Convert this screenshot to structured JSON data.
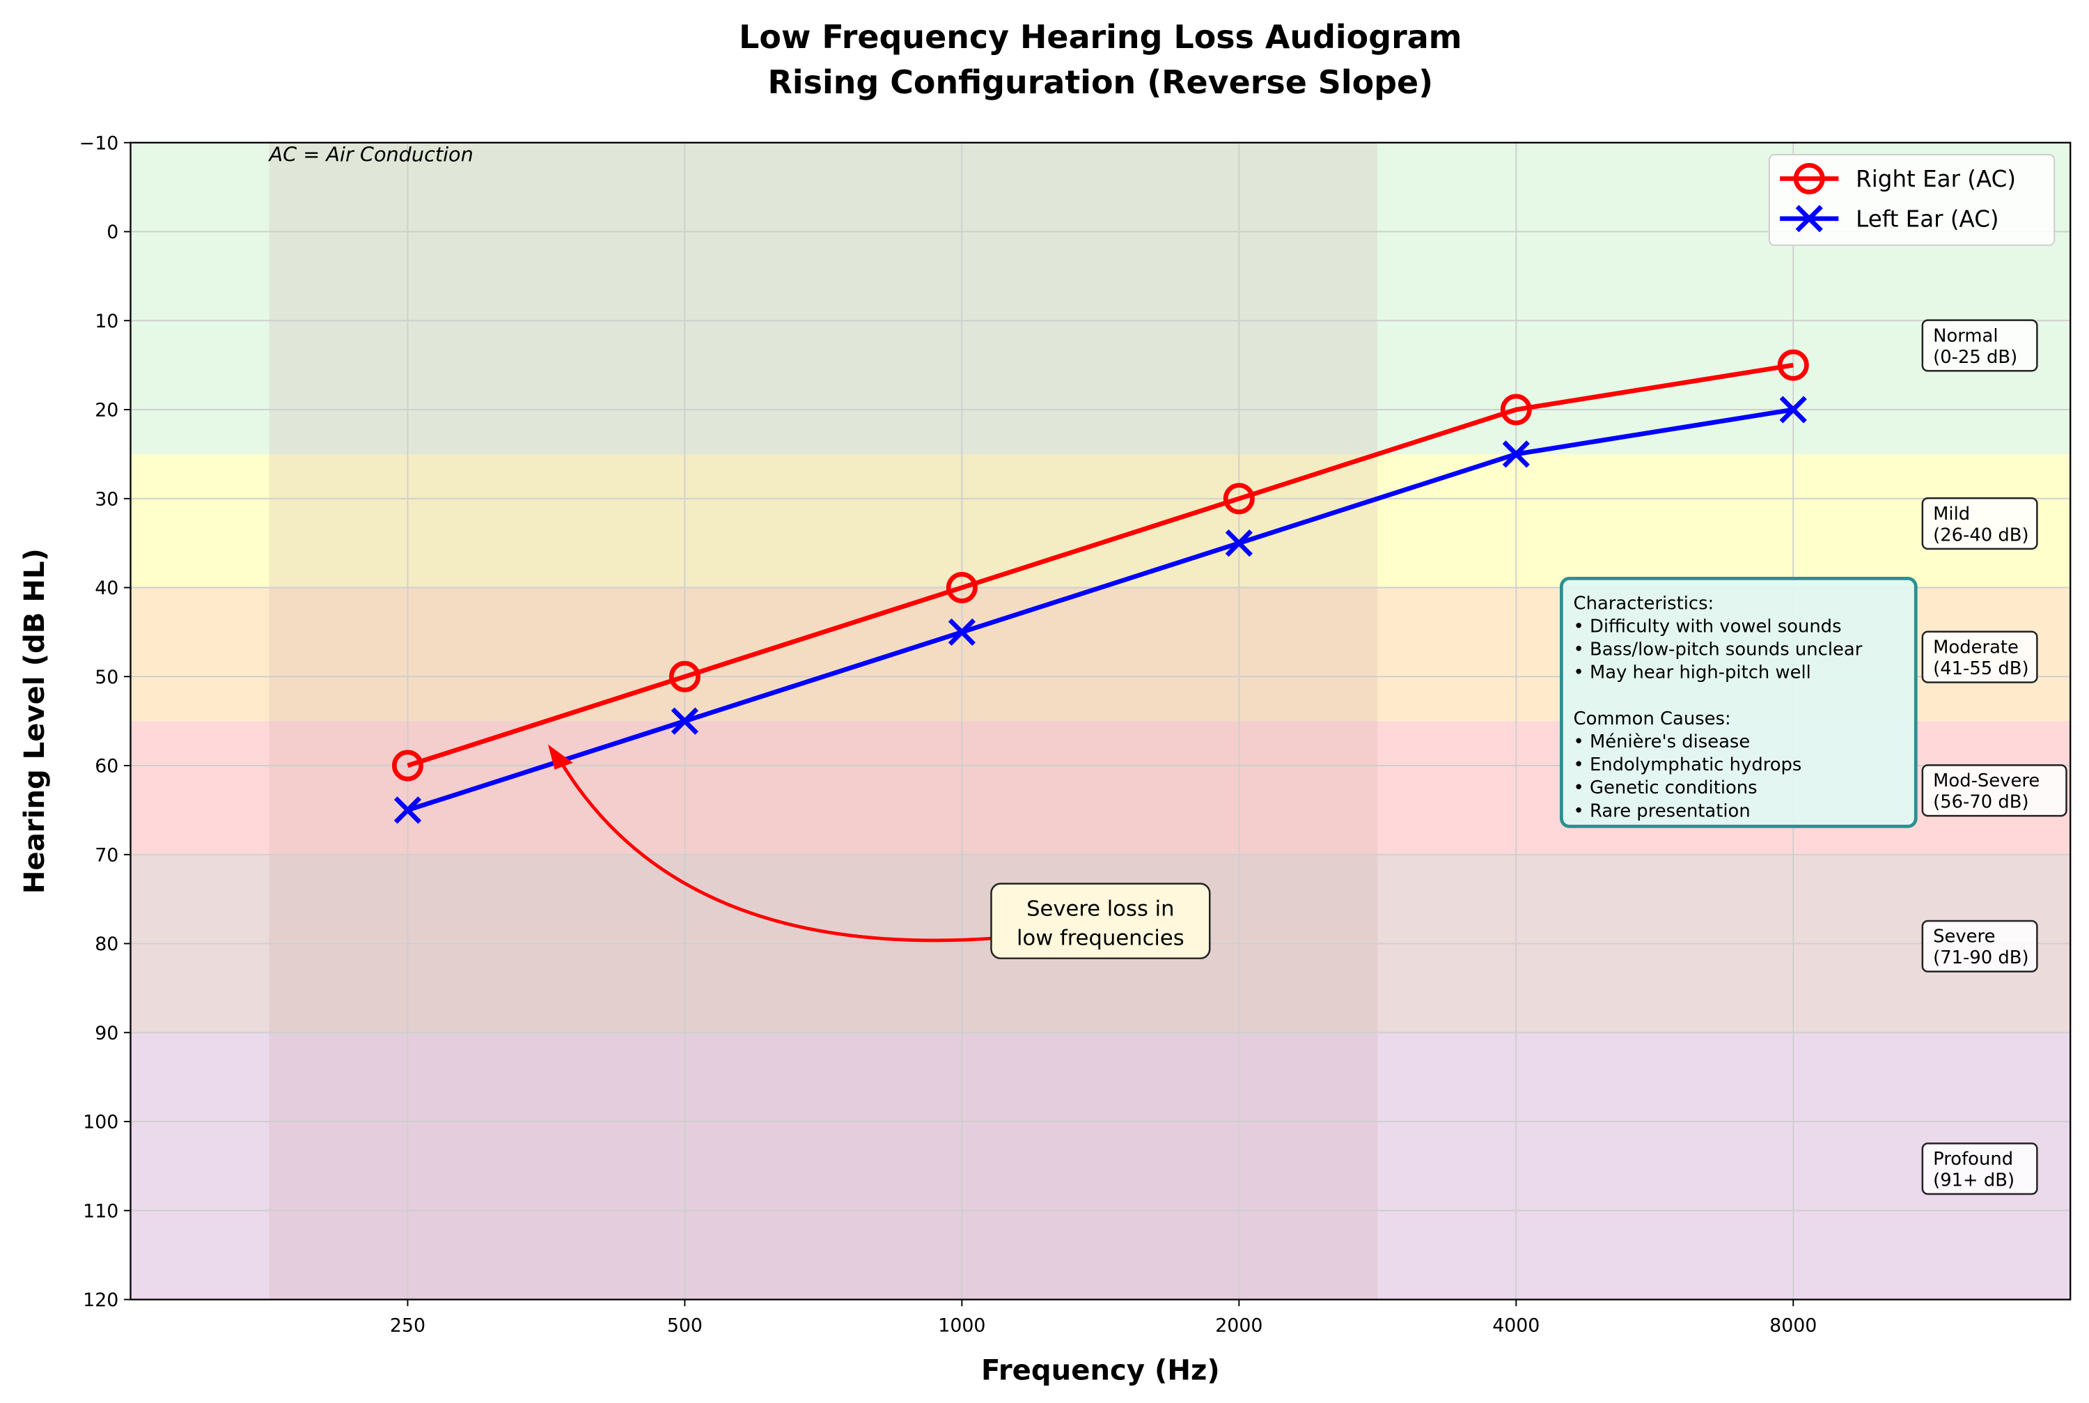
{
  "chart_data": {
    "type": "line",
    "title": "Low Frequency Hearing Loss Audiogram",
    "subtitle": "Rising Configuration (Reverse Slope)",
    "xlabel": "Frequency (Hz)",
    "ylabel": "Hearing Level (dB HL)",
    "x_categories": [
      "250",
      "500",
      "1000",
      "2000",
      "4000",
      "8000"
    ],
    "y_ticks": [
      -10,
      0,
      10,
      20,
      30,
      40,
      50,
      60,
      70,
      80,
      90,
      100,
      110,
      120
    ],
    "ylim": [
      -10,
      120
    ],
    "y_inverted": true,
    "grid": true,
    "legend_placement": "top-right",
    "series": [
      {
        "name": "Right Ear (AC)",
        "color": "#ff0000",
        "marker": "circle",
        "values": [
          60,
          50,
          40,
          30,
          20,
          15
        ]
      },
      {
        "name": "Left Ear (AC)",
        "color": "#0000ff",
        "marker": "x",
        "values": [
          65,
          55,
          45,
          35,
          25,
          20
        ]
      }
    ],
    "bands": [
      {
        "from": -10,
        "to": 25,
        "color": "#e6f9e6",
        "label": [
          "Normal",
          "(0-25 dB)"
        ],
        "label_at": 12.5
      },
      {
        "from": 25,
        "to": 40,
        "color": "#ffffcc",
        "label": [
          "Mild",
          "(26-40 dB)"
        ],
        "label_at": 32.5
      },
      {
        "from": 40,
        "to": 55,
        "color": "#ffebcc",
        "label": [
          "Moderate",
          "(41-55 dB)"
        ],
        "label_at": 47.5
      },
      {
        "from": 55,
        "to": 70,
        "color": "#ffd9d9",
        "label": [
          "Mod-Severe",
          "(56-70 dB)"
        ],
        "label_at": 62.5
      },
      {
        "from": 70,
        "to": 90,
        "color": "#ecdbdb",
        "label": [
          "Severe",
          "(71-90 dB)"
        ],
        "label_at": 80
      },
      {
        "from": 90,
        "to": 120,
        "color": "#ebd9ec",
        "label": [
          "Profound",
          "(91+ dB)"
        ],
        "label_at": 105
      }
    ],
    "low_frequency_region": {
      "from_category": "250",
      "to_category": "1000",
      "color": "#c8a0a0"
    },
    "annotations": {
      "ac_note": "AC = Air Conduction",
      "arrow_note": [
        "Severe loss in",
        "low frequencies"
      ],
      "info_box": [
        "Characteristics:",
        "• Difficulty with vowel sounds",
        "• Bass/low-pitch sounds unclear",
        "• May hear high-pitch well",
        "",
        "Common Causes:",
        "• Ménière's disease",
        "• Endolymphatic hydrops",
        "• Genetic conditions",
        "• Rare presentation"
      ]
    }
  }
}
